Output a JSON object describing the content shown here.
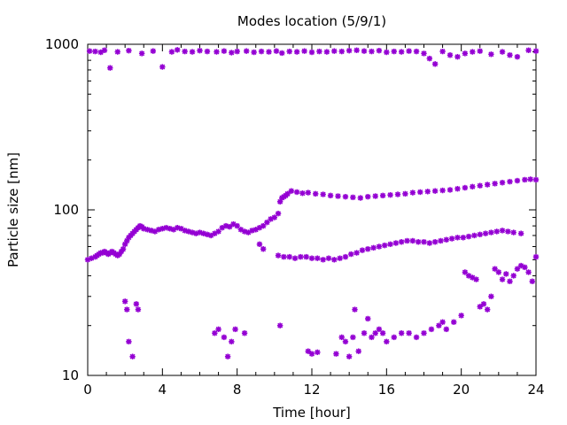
{
  "chart_data": {
    "type": "scatter",
    "title": "Modes location (5/9/1)",
    "xlabel": "Time [hour]",
    "ylabel": "Particle size [nm]",
    "xlim": [
      0,
      24
    ],
    "ylim": [
      10,
      1000
    ],
    "yscale": "log",
    "x_ticks": [
      0,
      4,
      8,
      12,
      16,
      20,
      24
    ],
    "x_tick_labels": [
      "0",
      "4",
      "8",
      "12",
      "16",
      "20",
      "24"
    ],
    "y_ticks": [
      10,
      100,
      1000
    ],
    "y_tick_labels": [
      "10",
      "100",
      "1000"
    ],
    "grid": false,
    "legend": "none",
    "marker": "star",
    "marker_color": "#9400d3",
    "points": [
      [
        0.0,
        50
      ],
      [
        0.2,
        51
      ],
      [
        0.4,
        52
      ],
      [
        0.5,
        53
      ],
      [
        0.6,
        54
      ],
      [
        0.7,
        55
      ],
      [
        0.8,
        55
      ],
      [
        0.9,
        56
      ],
      [
        1.0,
        55
      ],
      [
        1.1,
        54
      ],
      [
        1.2,
        55
      ],
      [
        1.3,
        56
      ],
      [
        1.4,
        55
      ],
      [
        1.5,
        54
      ],
      [
        1.6,
        53
      ],
      [
        1.7,
        54
      ],
      [
        1.8,
        56
      ],
      [
        1.9,
        58
      ],
      [
        2.0,
        62
      ],
      [
        2.1,
        65
      ],
      [
        2.2,
        68
      ],
      [
        2.3,
        70
      ],
      [
        2.4,
        72
      ],
      [
        2.5,
        74
      ],
      [
        2.6,
        76
      ],
      [
        2.7,
        78
      ],
      [
        2.8,
        80
      ],
      [
        2.9,
        79
      ],
      [
        3.0,
        77
      ],
      [
        3.2,
        76
      ],
      [
        3.4,
        75
      ],
      [
        3.6,
        74
      ],
      [
        3.8,
        76
      ],
      [
        4.0,
        77
      ],
      [
        4.2,
        78
      ],
      [
        4.4,
        77
      ],
      [
        4.6,
        76
      ],
      [
        4.8,
        78
      ],
      [
        5.0,
        77
      ],
      [
        5.2,
        75
      ],
      [
        5.4,
        74
      ],
      [
        5.6,
        73
      ],
      [
        5.8,
        72
      ],
      [
        6.0,
        73
      ],
      [
        6.2,
        72
      ],
      [
        6.4,
        71
      ],
      [
        6.6,
        70
      ],
      [
        6.8,
        72
      ],
      [
        7.0,
        74
      ],
      [
        7.2,
        78
      ],
      [
        7.4,
        80
      ],
      [
        7.6,
        79
      ],
      [
        7.8,
        82
      ],
      [
        8.0,
        80
      ],
      [
        8.2,
        76
      ],
      [
        8.4,
        74
      ],
      [
        8.6,
        73
      ],
      [
        8.8,
        75
      ],
      [
        9.0,
        76
      ],
      [
        9.2,
        78
      ],
      [
        9.4,
        80
      ],
      [
        9.6,
        84
      ],
      [
        9.8,
        88
      ],
      [
        10.0,
        90
      ],
      [
        10.2,
        95
      ],
      [
        10.3,
        112
      ],
      [
        10.4,
        118
      ],
      [
        10.5,
        120
      ],
      [
        10.6,
        122
      ],
      [
        10.7,
        125
      ],
      [
        10.9,
        130
      ],
      [
        11.2,
        128
      ],
      [
        11.5,
        126
      ],
      [
        11.8,
        127
      ],
      [
        12.2,
        125
      ],
      [
        12.6,
        124
      ],
      [
        13.0,
        122
      ],
      [
        13.4,
        121
      ],
      [
        13.8,
        120
      ],
      [
        14.2,
        119
      ],
      [
        14.6,
        118
      ],
      [
        15.0,
        120
      ],
      [
        15.4,
        121
      ],
      [
        15.8,
        122
      ],
      [
        16.2,
        123
      ],
      [
        16.6,
        124
      ],
      [
        17.0,
        125
      ],
      [
        17.4,
        127
      ],
      [
        17.8,
        128
      ],
      [
        18.2,
        129
      ],
      [
        18.6,
        130
      ],
      [
        19.0,
        131
      ],
      [
        19.4,
        132
      ],
      [
        19.8,
        134
      ],
      [
        20.2,
        136
      ],
      [
        20.6,
        138
      ],
      [
        21.0,
        140
      ],
      [
        21.4,
        142
      ],
      [
        21.8,
        144
      ],
      [
        22.2,
        146
      ],
      [
        22.6,
        148
      ],
      [
        23.0,
        150
      ],
      [
        23.4,
        152
      ],
      [
        23.7,
        153
      ],
      [
        24.0,
        152
      ],
      [
        9.2,
        62
      ],
      [
        9.4,
        58
      ],
      [
        10.2,
        53
      ],
      [
        10.5,
        52
      ],
      [
        10.8,
        52
      ],
      [
        11.1,
        51
      ],
      [
        11.4,
        52
      ],
      [
        11.7,
        52
      ],
      [
        12.0,
        51
      ],
      [
        12.3,
        51
      ],
      [
        12.6,
        50
      ],
      [
        12.9,
        51
      ],
      [
        13.2,
        50
      ],
      [
        13.5,
        51
      ],
      [
        13.8,
        52
      ],
      [
        14.1,
        54
      ],
      [
        14.4,
        55
      ],
      [
        14.7,
        57
      ],
      [
        15.0,
        58
      ],
      [
        15.3,
        59
      ],
      [
        15.6,
        60
      ],
      [
        15.9,
        61
      ],
      [
        16.2,
        62
      ],
      [
        16.5,
        63
      ],
      [
        16.8,
        64
      ],
      [
        17.1,
        65
      ],
      [
        17.4,
        65
      ],
      [
        17.7,
        64
      ],
      [
        18.0,
        64
      ],
      [
        18.3,
        63
      ],
      [
        18.6,
        64
      ],
      [
        18.9,
        65
      ],
      [
        19.2,
        66
      ],
      [
        19.5,
        67
      ],
      [
        19.8,
        68
      ],
      [
        20.1,
        68
      ],
      [
        20.4,
        69
      ],
      [
        20.7,
        70
      ],
      [
        21.0,
        71
      ],
      [
        21.3,
        72
      ],
      [
        21.6,
        73
      ],
      [
        21.9,
        74
      ],
      [
        22.2,
        75
      ],
      [
        22.5,
        74
      ],
      [
        22.8,
        73
      ],
      [
        23.2,
        72
      ],
      [
        0.1,
        910
      ],
      [
        0.4,
        905
      ],
      [
        0.7,
        895
      ],
      [
        0.9,
        920
      ],
      [
        1.2,
        720
      ],
      [
        1.6,
        900
      ],
      [
        2.2,
        915
      ],
      [
        2.9,
        880
      ],
      [
        3.5,
        910
      ],
      [
        4.0,
        730
      ],
      [
        4.5,
        900
      ],
      [
        4.8,
        925
      ],
      [
        5.2,
        905
      ],
      [
        5.6,
        900
      ],
      [
        6.0,
        915
      ],
      [
        6.4,
        905
      ],
      [
        6.9,
        900
      ],
      [
        7.3,
        910
      ],
      [
        7.7,
        890
      ],
      [
        8.0,
        905
      ],
      [
        8.5,
        910
      ],
      [
        8.9,
        895
      ],
      [
        9.3,
        905
      ],
      [
        9.7,
        900
      ],
      [
        10.1,
        910
      ],
      [
        10.4,
        885
      ],
      [
        10.8,
        905
      ],
      [
        11.2,
        900
      ],
      [
        11.6,
        910
      ],
      [
        12.0,
        895
      ],
      [
        12.4,
        905
      ],
      [
        12.8,
        900
      ],
      [
        13.2,
        910
      ],
      [
        13.6,
        905
      ],
      [
        14.0,
        915
      ],
      [
        14.4,
        920
      ],
      [
        14.8,
        910
      ],
      [
        15.2,
        905
      ],
      [
        15.6,
        915
      ],
      [
        16.0,
        895
      ],
      [
        16.4,
        905
      ],
      [
        16.8,
        900
      ],
      [
        17.2,
        910
      ],
      [
        17.6,
        905
      ],
      [
        18.0,
        880
      ],
      [
        18.3,
        820
      ],
      [
        18.6,
        760
      ],
      [
        19.0,
        905
      ],
      [
        19.4,
        860
      ],
      [
        19.8,
        840
      ],
      [
        20.2,
        880
      ],
      [
        20.6,
        900
      ],
      [
        21.0,
        910
      ],
      [
        21.6,
        870
      ],
      [
        22.2,
        900
      ],
      [
        22.6,
        860
      ],
      [
        23.0,
        840
      ],
      [
        23.6,
        920
      ],
      [
        24.0,
        910
      ],
      [
        2.0,
        28
      ],
      [
        2.1,
        25
      ],
      [
        2.2,
        16
      ],
      [
        2.4,
        13
      ],
      [
        2.6,
        27
      ],
      [
        2.7,
        25
      ],
      [
        6.8,
        18
      ],
      [
        7.0,
        19
      ],
      [
        7.3,
        17
      ],
      [
        7.5,
        13
      ],
      [
        7.7,
        16
      ],
      [
        7.9,
        19
      ],
      [
        8.4,
        18
      ],
      [
        10.3,
        20
      ],
      [
        11.8,
        14
      ],
      [
        12.0,
        13.5
      ],
      [
        12.3,
        13.8
      ],
      [
        13.3,
        13.5
      ],
      [
        13.6,
        17
      ],
      [
        13.8,
        16
      ],
      [
        14.0,
        13
      ],
      [
        14.2,
        17
      ],
      [
        14.3,
        25
      ],
      [
        14.5,
        14
      ],
      [
        14.8,
        18
      ],
      [
        15.0,
        22
      ],
      [
        15.2,
        17
      ],
      [
        15.4,
        18
      ],
      [
        15.6,
        19
      ],
      [
        15.8,
        18
      ],
      [
        16.0,
        16
      ],
      [
        16.4,
        17
      ],
      [
        16.8,
        18
      ],
      [
        17.2,
        18
      ],
      [
        17.6,
        17
      ],
      [
        18.0,
        18
      ],
      [
        18.4,
        19
      ],
      [
        18.8,
        20
      ],
      [
        19.0,
        21
      ],
      [
        19.2,
        19
      ],
      [
        19.6,
        21
      ],
      [
        20.0,
        23
      ],
      [
        20.2,
        42
      ],
      [
        20.4,
        40
      ],
      [
        20.6,
        39
      ],
      [
        20.8,
        38
      ],
      [
        21.0,
        26
      ],
      [
        21.2,
        27
      ],
      [
        21.4,
        25
      ],
      [
        21.6,
        30
      ],
      [
        21.8,
        44
      ],
      [
        22.0,
        42
      ],
      [
        22.2,
        38
      ],
      [
        22.4,
        41
      ],
      [
        22.6,
        37
      ],
      [
        22.8,
        40
      ],
      [
        23.0,
        44
      ],
      [
        23.2,
        46
      ],
      [
        23.4,
        45
      ],
      [
        23.6,
        42
      ],
      [
        23.8,
        37
      ],
      [
        24.0,
        52
      ]
    ]
  }
}
